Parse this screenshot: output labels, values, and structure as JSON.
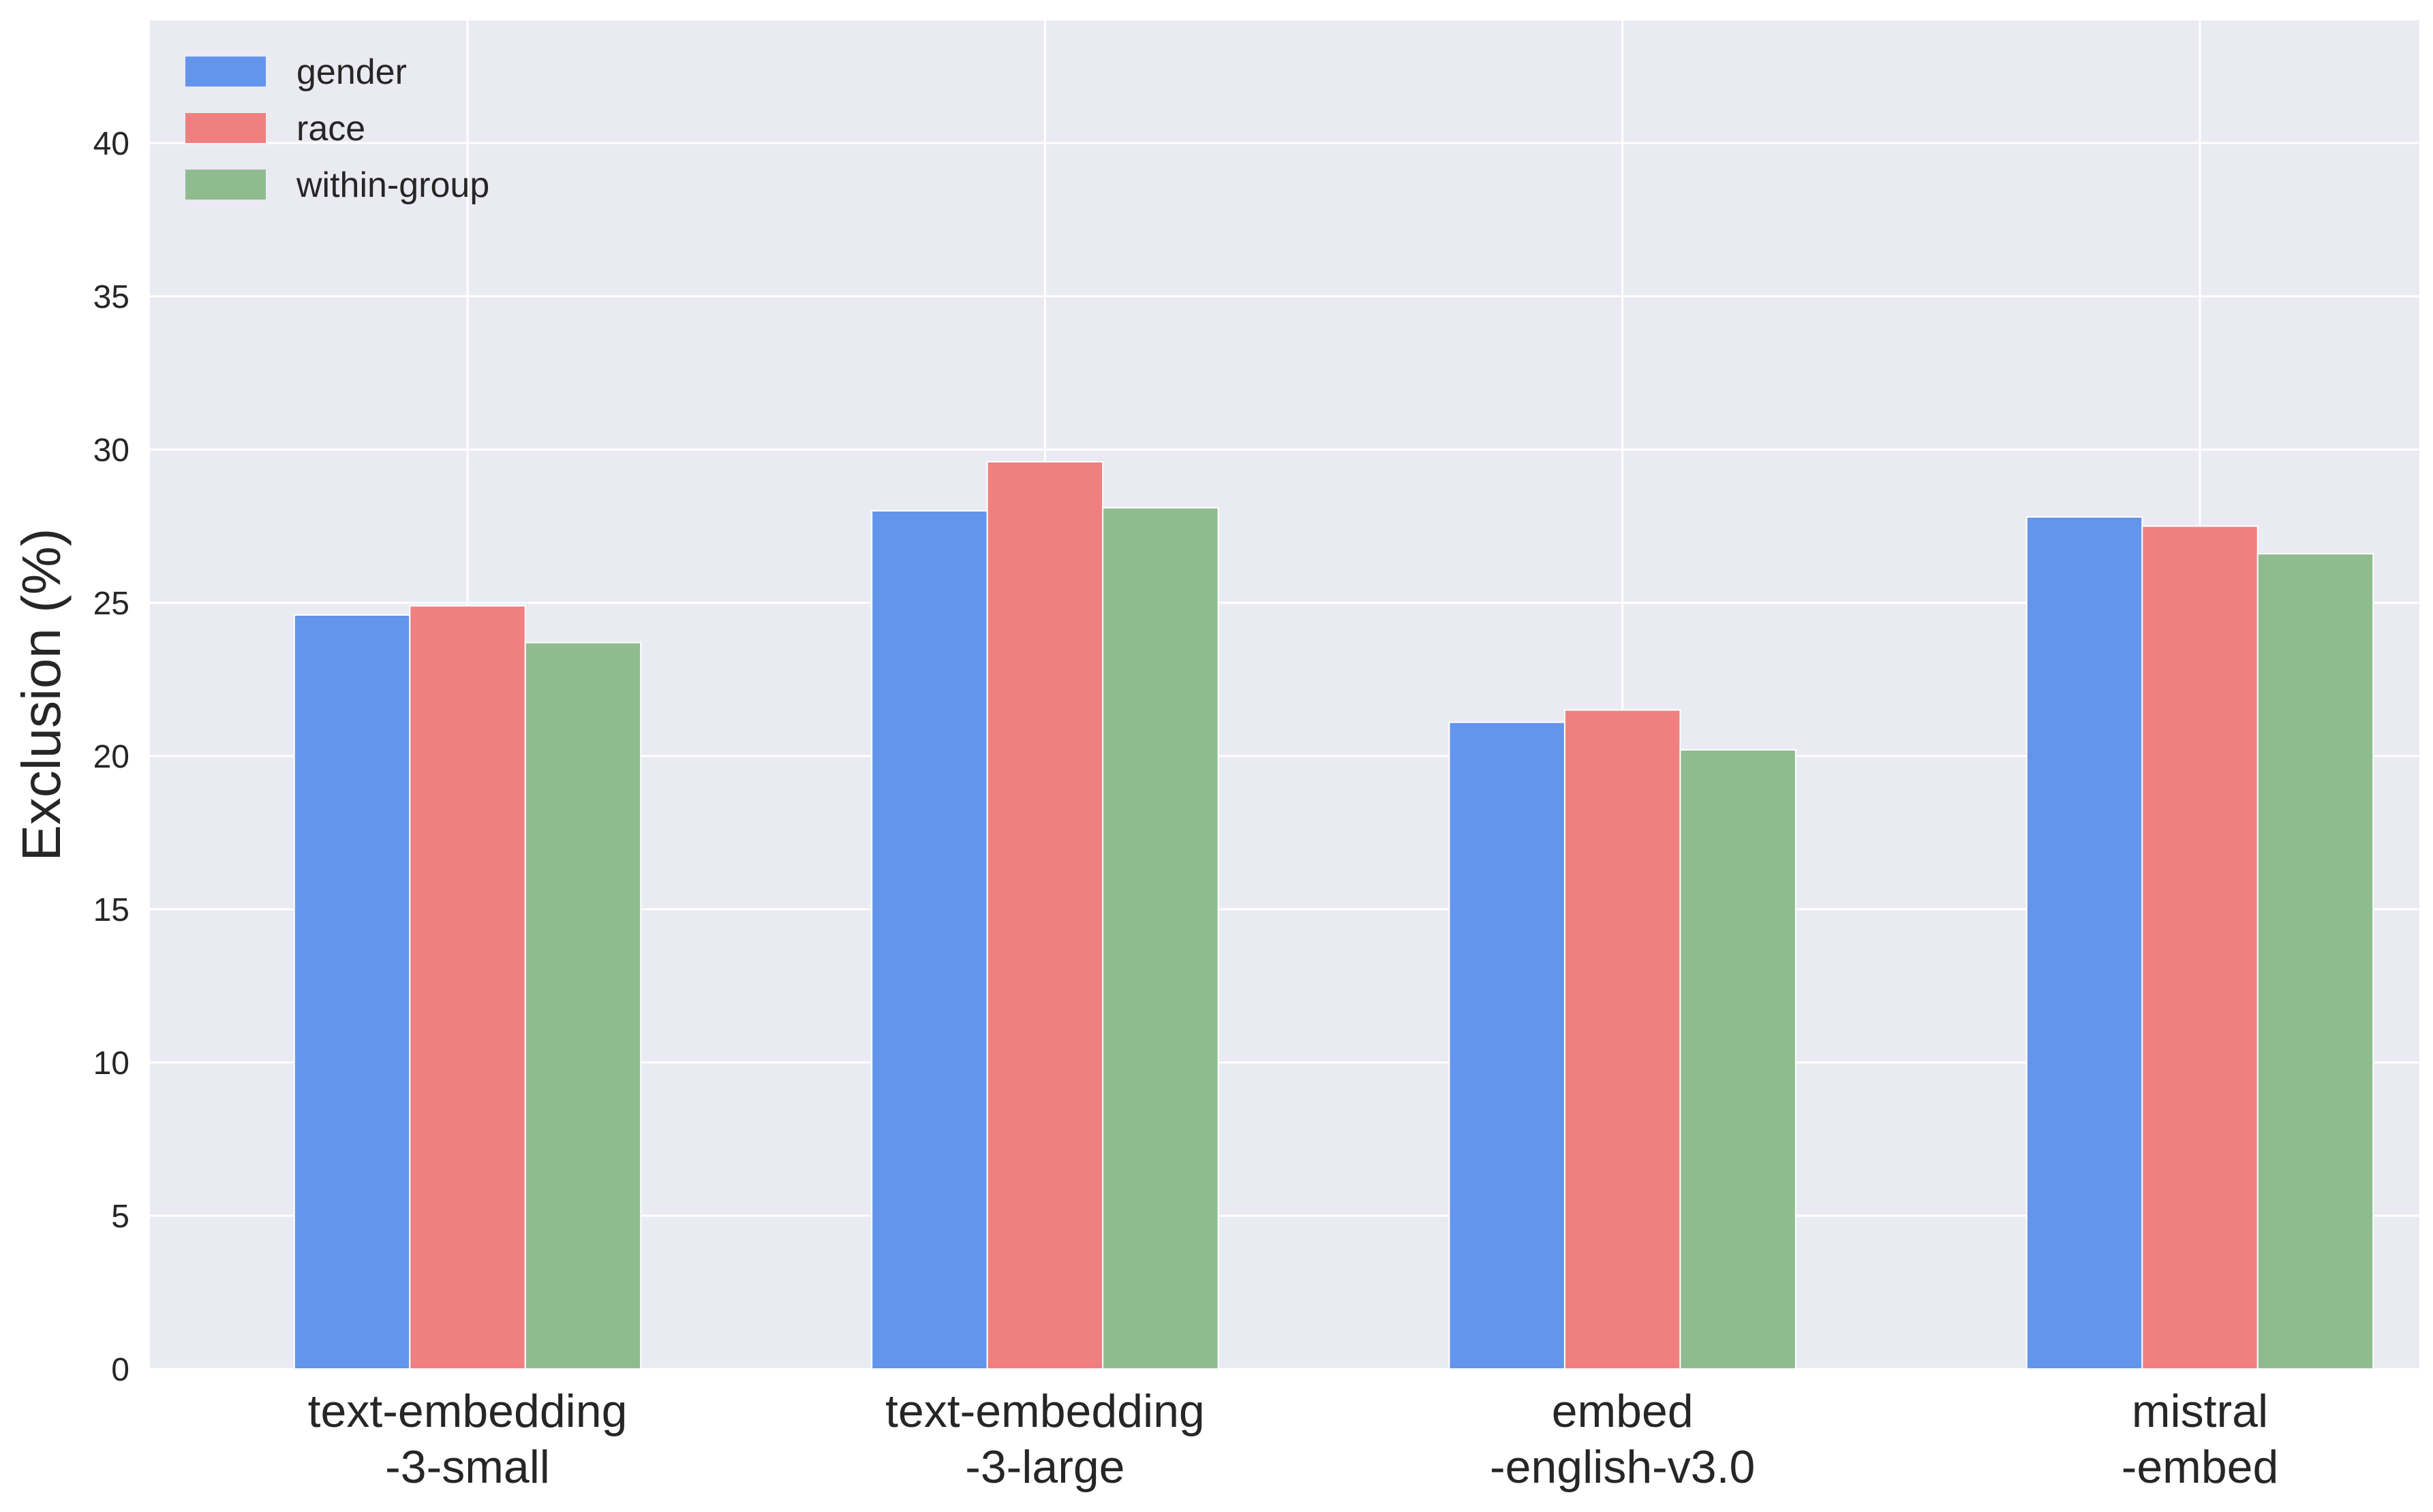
{
  "chart_data": {
    "type": "bar",
    "title": "",
    "xlabel": "",
    "ylabel": "Exclusion (%)",
    "ylim": [
      0,
      44
    ],
    "yticks": [
      0,
      5,
      10,
      15,
      20,
      25,
      30,
      35,
      40
    ],
    "grid": true,
    "legend_position": "top-left",
    "categories": [
      [
        "text-embedding",
        "-3-small"
      ],
      [
        "text-embedding",
        "-3-large"
      ],
      [
        "embed",
        "-english-v3.0"
      ],
      [
        "mistral",
        "-embed"
      ]
    ],
    "series": [
      {
        "name": "gender",
        "color": "#6495ed",
        "values": [
          24.6,
          28.0,
          21.1,
          27.8
        ]
      },
      {
        "name": "race",
        "color": "#f08080",
        "values": [
          24.9,
          29.6,
          21.5,
          27.5
        ]
      },
      {
        "name": "within-group",
        "color": "#8fbc8f",
        "values": [
          23.7,
          28.1,
          20.2,
          26.6
        ]
      }
    ]
  }
}
